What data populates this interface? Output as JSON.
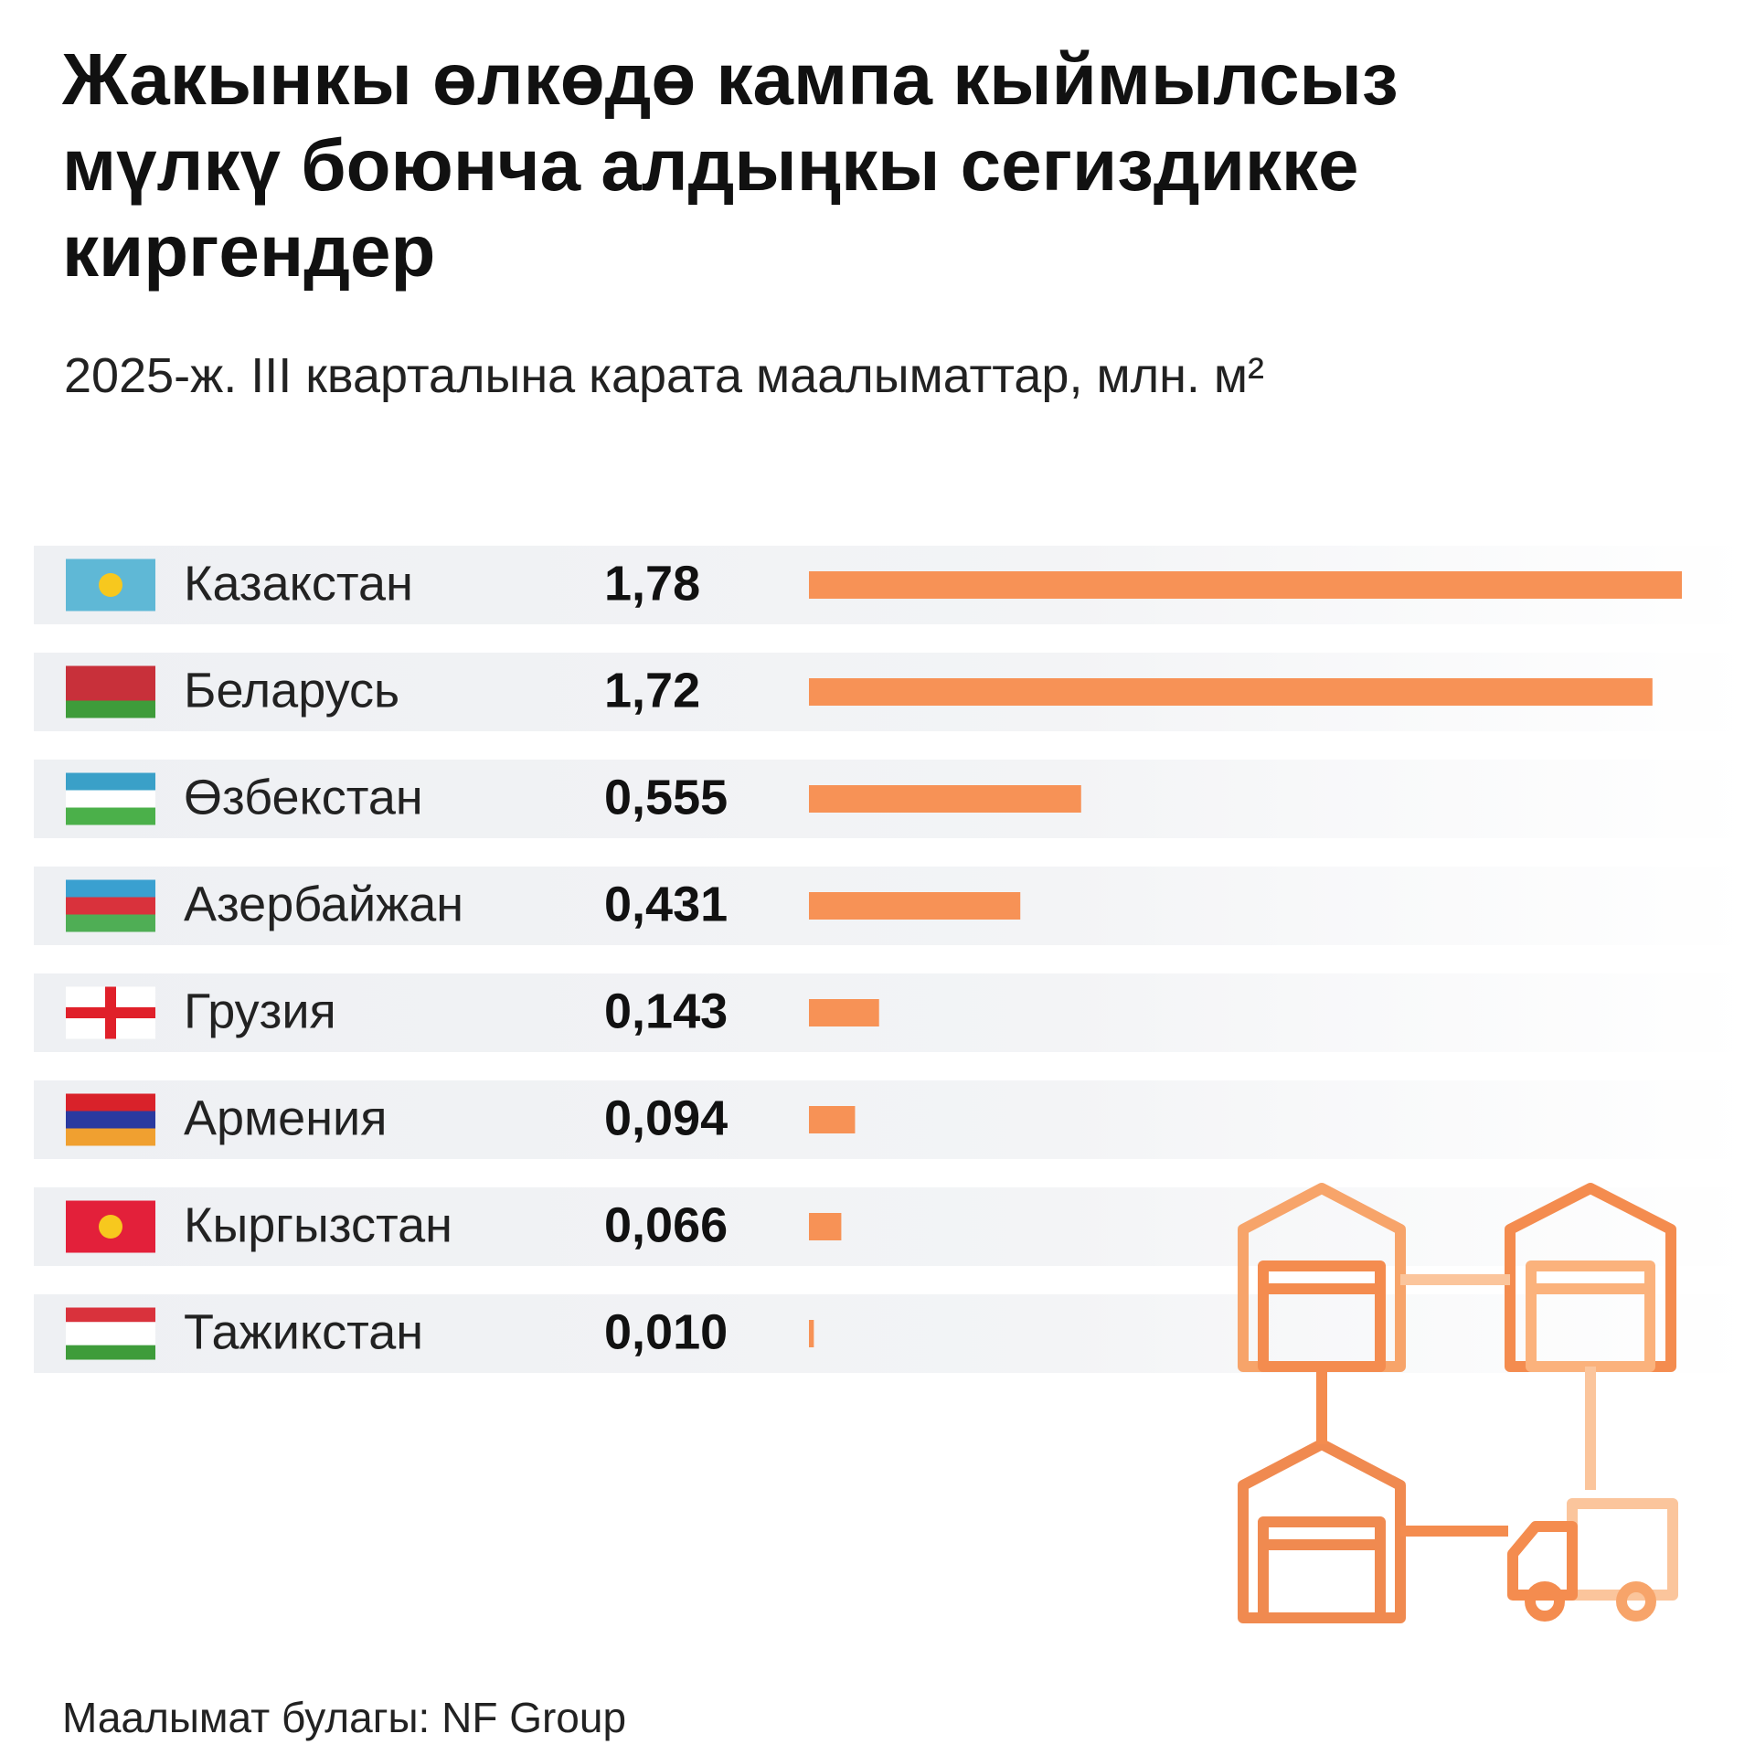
{
  "chart_data": {
    "type": "bar",
    "title": "Жакынкы өлкөдө кампа кыймылсыз мүлкү боюнча алдыңкы сегиздикке киргендер",
    "subtitle": "2025-ж. III кварталына карата маалыматтар, млн. м²",
    "categories": [
      "Казакстан",
      "Беларусь",
      "Өзбекстан",
      "Азербайжан",
      "Грузия",
      "Армения",
      "Кыргызстан",
      "Тажикстан"
    ],
    "values": [
      1.78,
      1.72,
      0.555,
      0.431,
      0.143,
      0.094,
      0.066,
      0.01
    ],
    "value_labels": [
      "1,78",
      "1,72",
      "0,555",
      "0,431",
      "0,143",
      "0,094",
      "0,066",
      "0,010"
    ],
    "color": "#f79256",
    "source": "Маалымат булагы: NF Group"
  }
}
